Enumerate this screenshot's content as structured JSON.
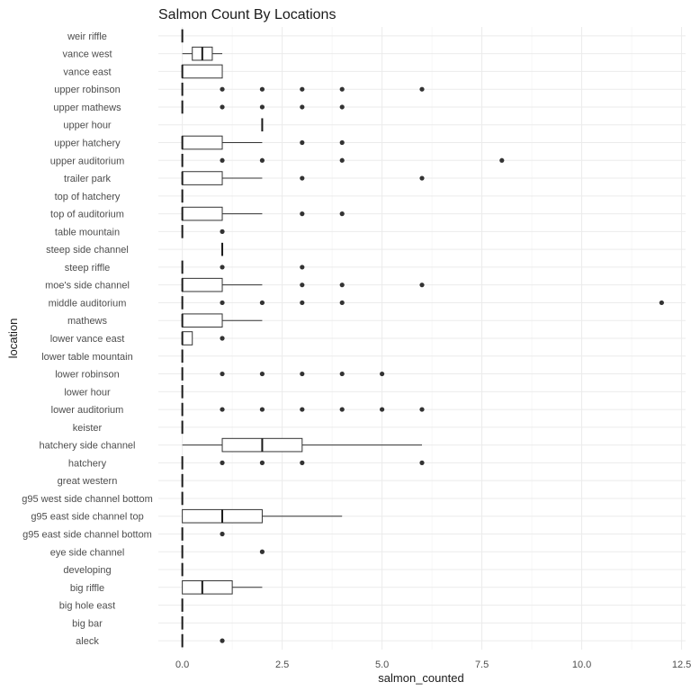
{
  "chart_data": {
    "type": "boxplot",
    "title": "Salmon Count By Locations",
    "xlabel": "salmon_counted",
    "ylabel": "location",
    "xlim": [
      -0.6,
      12.6
    ],
    "xticks": [
      0,
      2.5,
      5,
      7.5,
      10,
      12.5
    ],
    "xtick_labels": [
      "0.0",
      "2.5",
      "5.0",
      "7.5",
      "10.0",
      "12.5"
    ],
    "grid": true,
    "legend": "none",
    "categories": [
      "weir riffle",
      "vance west",
      "vance east",
      "upper robinson",
      "upper mathews",
      "upper hour",
      "upper hatchery",
      "upper auditorium",
      "trailer park",
      "top of hatchery",
      "top of auditorium",
      "table mountain",
      "steep side channel",
      "steep riffle",
      "moe's side channel",
      "middle auditorium",
      "mathews",
      "lower vance east",
      "lower table mountain",
      "lower robinson",
      "lower hour",
      "lower auditorium",
      "keister",
      "hatchery side channel",
      "hatchery",
      "great western",
      "g95 west side channel bottom",
      "g95 east side channel top",
      "g95 east side channel bottom",
      "eye side channel",
      "developing",
      "big riffle",
      "big hole east",
      "big bar",
      "aleck"
    ],
    "boxes": [
      {
        "min": 0,
        "q1": 0,
        "median": 0,
        "q3": 0,
        "max": 0,
        "outliers": []
      },
      {
        "min": 0,
        "q1": 0.25,
        "median": 0.5,
        "q3": 0.75,
        "max": 1,
        "outliers": []
      },
      {
        "min": 0,
        "q1": 0,
        "median": 0,
        "q3": 1,
        "max": 1,
        "outliers": []
      },
      {
        "min": 0,
        "q1": 0,
        "median": 0,
        "q3": 0,
        "max": 0,
        "outliers": [
          1,
          2,
          3,
          4,
          6
        ]
      },
      {
        "min": 0,
        "q1": 0,
        "median": 0,
        "q3": 0,
        "max": 0,
        "outliers": [
          1,
          2,
          3,
          4
        ]
      },
      {
        "min": 2,
        "q1": 2,
        "median": 2,
        "q3": 2,
        "max": 2,
        "outliers": []
      },
      {
        "min": 0,
        "q1": 0,
        "median": 0,
        "q3": 1,
        "max": 2,
        "outliers": [
          3,
          4
        ]
      },
      {
        "min": 0,
        "q1": 0,
        "median": 0,
        "q3": 0,
        "max": 0,
        "outliers": [
          1,
          2,
          4,
          8
        ]
      },
      {
        "min": 0,
        "q1": 0,
        "median": 0,
        "q3": 1,
        "max": 2,
        "outliers": [
          3,
          6
        ]
      },
      {
        "min": 0,
        "q1": 0,
        "median": 0,
        "q3": 0,
        "max": 0,
        "outliers": []
      },
      {
        "min": 0,
        "q1": 0,
        "median": 0,
        "q3": 1,
        "max": 2,
        "outliers": [
          3,
          4
        ]
      },
      {
        "min": 0,
        "q1": 0,
        "median": 0,
        "q3": 0,
        "max": 0,
        "outliers": [
          1
        ]
      },
      {
        "min": 1,
        "q1": 1,
        "median": 1,
        "q3": 1,
        "max": 1,
        "outliers": []
      },
      {
        "min": 0,
        "q1": 0,
        "median": 0,
        "q3": 0,
        "max": 0,
        "outliers": [
          1,
          3
        ]
      },
      {
        "min": 0,
        "q1": 0,
        "median": 0,
        "q3": 1,
        "max": 2,
        "outliers": [
          3,
          4,
          6
        ]
      },
      {
        "min": 0,
        "q1": 0,
        "median": 0,
        "q3": 0,
        "max": 0,
        "outliers": [
          1,
          2,
          3,
          4,
          12
        ]
      },
      {
        "min": 0,
        "q1": 0,
        "median": 0,
        "q3": 1,
        "max": 2,
        "outliers": []
      },
      {
        "min": 0,
        "q1": 0,
        "median": 0,
        "q3": 0.25,
        "max": 0.25,
        "outliers": [
          1
        ]
      },
      {
        "min": 0,
        "q1": 0,
        "median": 0,
        "q3": 0,
        "max": 0,
        "outliers": []
      },
      {
        "min": 0,
        "q1": 0,
        "median": 0,
        "q3": 0,
        "max": 0,
        "outliers": [
          1,
          2,
          3,
          4,
          5
        ]
      },
      {
        "min": 0,
        "q1": 0,
        "median": 0,
        "q3": 0,
        "max": 0,
        "outliers": []
      },
      {
        "min": 0,
        "q1": 0,
        "median": 0,
        "q3": 0,
        "max": 0,
        "outliers": [
          1,
          2,
          3,
          4,
          5,
          6
        ]
      },
      {
        "min": 0,
        "q1": 0,
        "median": 0,
        "q3": 0,
        "max": 0,
        "outliers": []
      },
      {
        "min": 0,
        "q1": 1,
        "median": 2,
        "q3": 3,
        "max": 6,
        "outliers": []
      },
      {
        "min": 0,
        "q1": 0,
        "median": 0,
        "q3": 0,
        "max": 0,
        "outliers": [
          1,
          2,
          3,
          6
        ]
      },
      {
        "min": 0,
        "q1": 0,
        "median": 0,
        "q3": 0,
        "max": 0,
        "outliers": []
      },
      {
        "min": 0,
        "q1": 0,
        "median": 0,
        "q3": 0,
        "max": 0,
        "outliers": []
      },
      {
        "min": 0,
        "q1": 0,
        "median": 1,
        "q3": 2,
        "max": 4,
        "outliers": []
      },
      {
        "min": 0,
        "q1": 0,
        "median": 0,
        "q3": 0,
        "max": 0,
        "outliers": [
          1
        ]
      },
      {
        "min": 0,
        "q1": 0,
        "median": 0,
        "q3": 0,
        "max": 0,
        "outliers": [
          2
        ]
      },
      {
        "min": 0,
        "q1": 0,
        "median": 0,
        "q3": 0,
        "max": 0,
        "outliers": []
      },
      {
        "min": 0,
        "q1": 0,
        "median": 0.5,
        "q3": 1.25,
        "max": 2,
        "outliers": []
      },
      {
        "min": 0,
        "q1": 0,
        "median": 0,
        "q3": 0,
        "max": 0,
        "outliers": []
      },
      {
        "min": 0,
        "q1": 0,
        "median": 0,
        "q3": 0,
        "max": 0,
        "outliers": []
      },
      {
        "min": 0,
        "q1": 0,
        "median": 0,
        "q3": 0,
        "max": 0,
        "outliers": [
          1
        ]
      }
    ]
  }
}
